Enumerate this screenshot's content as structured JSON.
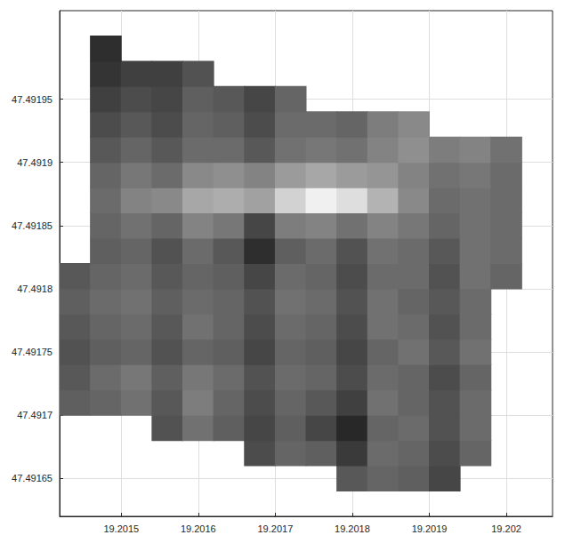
{
  "chart_data": {
    "type": "heatmap",
    "x": [
      19.20144,
      19.20148,
      19.20152,
      19.20156,
      19.2016,
      19.20164,
      19.20168,
      19.20172,
      19.20176,
      19.2018,
      19.20184,
      19.20188,
      19.20192,
      19.20196,
      19.202
    ],
    "y": [
      47.49165,
      47.49167,
      47.49169,
      47.49171,
      47.49173,
      47.49175,
      47.49177,
      47.49179,
      47.49181,
      47.49183,
      47.49185,
      47.49187,
      47.49189,
      47.49191,
      47.49193,
      47.49195,
      47.49197,
      47.49199
    ],
    "z": [
      [
        null,
        null,
        null,
        null,
        null,
        null,
        null,
        null,
        null,
        36,
        40,
        38,
        30,
        null,
        null
      ],
      [
        null,
        null,
        null,
        null,
        null,
        null,
        32,
        40,
        38,
        26,
        42,
        40,
        32,
        40,
        null
      ],
      [
        null,
        null,
        null,
        34,
        44,
        38,
        30,
        38,
        30,
        20,
        40,
        42,
        34,
        42,
        null
      ],
      [
        38,
        40,
        44,
        36,
        48,
        40,
        32,
        40,
        36,
        28,
        44,
        40,
        34,
        42,
        null
      ],
      [
        36,
        42,
        46,
        38,
        46,
        42,
        34,
        42,
        40,
        32,
        42,
        40,
        32,
        40,
        null
      ],
      [
        34,
        38,
        40,
        34,
        40,
        38,
        30,
        40,
        38,
        30,
        40,
        44,
        36,
        44,
        null
      ],
      [
        36,
        40,
        42,
        36,
        44,
        40,
        32,
        42,
        40,
        32,
        44,
        42,
        34,
        42,
        null
      ],
      [
        38,
        42,
        44,
        38,
        42,
        40,
        34,
        44,
        42,
        34,
        44,
        40,
        36,
        42,
        null
      ],
      [
        36,
        40,
        42,
        36,
        40,
        38,
        30,
        42,
        40,
        32,
        42,
        42,
        34,
        44,
        40
      ],
      [
        null,
        38,
        40,
        34,
        42,
        36,
        22,
        38,
        42,
        34,
        44,
        42,
        36,
        44,
        42
      ],
      [
        null,
        40,
        44,
        40,
        50,
        46,
        30,
        48,
        50,
        44,
        50,
        46,
        40,
        44,
        42
      ],
      [
        null,
        42,
        50,
        52,
        62,
        64,
        60,
        76,
        86,
        80,
        66,
        52,
        42,
        44,
        42
      ],
      [
        null,
        40,
        46,
        42,
        52,
        54,
        50,
        58,
        62,
        58,
        56,
        50,
        44,
        46,
        42
      ],
      [
        null,
        36,
        40,
        36,
        42,
        42,
        36,
        44,
        46,
        44,
        50,
        54,
        48,
        50,
        44
      ],
      [
        null,
        32,
        36,
        32,
        40,
        38,
        32,
        42,
        42,
        40,
        48,
        52,
        null,
        null,
        null
      ],
      [
        null,
        28,
        32,
        30,
        38,
        36,
        30,
        40,
        null,
        null,
        null,
        null,
        null,
        null,
        null
      ],
      [
        null,
        24,
        28,
        28,
        34,
        null,
        null,
        null,
        null,
        null,
        null,
        null,
        null,
        null,
        null
      ],
      [
        null,
        22,
        null,
        null,
        null,
        null,
        null,
        null,
        null,
        null,
        null,
        null,
        null,
        null,
        null
      ]
    ],
    "xlim": [
      19.20142,
      19.20206
    ],
    "xticks": [
      19.2015,
      19.2016,
      19.2017,
      19.2018,
      19.2019,
      19.202
    ],
    "ylim": [
      47.49162,
      47.49202
    ],
    "yticks": [
      47.49165,
      47.4917,
      47.49175,
      47.4918,
      47.49185,
      47.4919,
      47.49195
    ],
    "grid": true
  }
}
